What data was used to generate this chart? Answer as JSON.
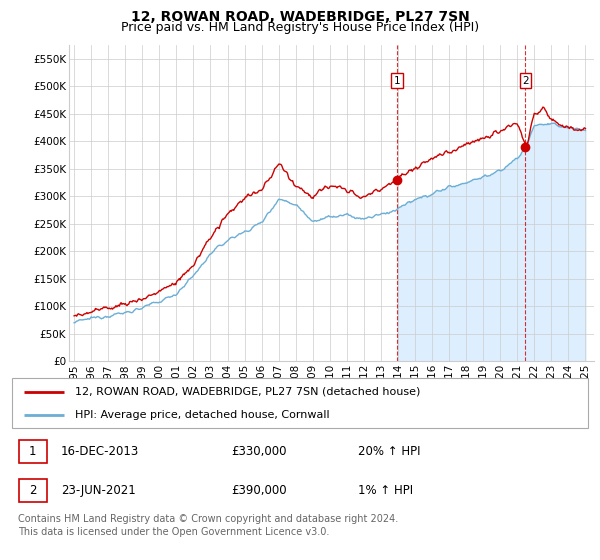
{
  "title": "12, ROWAN ROAD, WADEBRIDGE, PL27 7SN",
  "subtitle": "Price paid vs. HM Land Registry's House Price Index (HPI)",
  "ylim": [
    0,
    575000
  ],
  "yticks": [
    0,
    50000,
    100000,
    150000,
    200000,
    250000,
    300000,
    350000,
    400000,
    450000,
    500000,
    550000
  ],
  "ytick_labels": [
    "£0",
    "£50K",
    "£100K",
    "£150K",
    "£200K",
    "£250K",
    "£300K",
    "£350K",
    "£400K",
    "£450K",
    "£500K",
    "£550K"
  ],
  "hpi_color": "#6baed6",
  "price_color": "#cc0000",
  "vline_color": "#cc0000",
  "fill_color": "#ddeeff",
  "background_color": "#ffffff",
  "grid_color": "#cccccc",
  "xmin": 1995,
  "xmax": 2025,
  "transaction1": {
    "date_num": 2013.96,
    "price": 330000,
    "label": "1"
  },
  "transaction2": {
    "date_num": 2021.48,
    "price": 390000,
    "label": "2"
  },
  "legend_entries": [
    {
      "label": "12, ROWAN ROAD, WADEBRIDGE, PL27 7SN (detached house)",
      "color": "#cc0000"
    },
    {
      "label": "HPI: Average price, detached house, Cornwall",
      "color": "#6baed6"
    }
  ],
  "table_rows": [
    {
      "num": "1",
      "date": "16-DEC-2013",
      "price": "£330,000",
      "hpi": "20% ↑ HPI"
    },
    {
      "num": "2",
      "date": "23-JUN-2021",
      "price": "£390,000",
      "hpi": "1% ↑ HPI"
    }
  ],
  "footer": "Contains HM Land Registry data © Crown copyright and database right 2024.\nThis data is licensed under the Open Government Licence v3.0.",
  "title_fontsize": 10,
  "subtitle_fontsize": 9,
  "tick_fontsize": 7.5,
  "legend_fontsize": 8,
  "table_fontsize": 8.5,
  "footer_fontsize": 7
}
